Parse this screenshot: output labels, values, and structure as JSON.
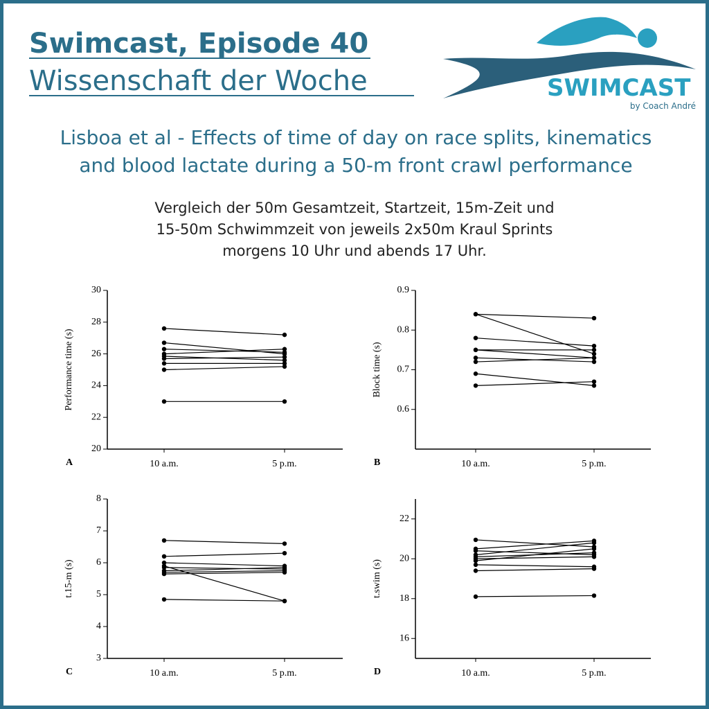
{
  "header": {
    "title": "Swimcast, Episode 40",
    "subtitle": "Wissenschaft der Woche",
    "logo": "SWIMCAST",
    "logo_tagline": "by Coach André",
    "paper": [
      "Lisboa et al - Effects of time of day on race splits, kinematics",
      "and blood lactate during a 50-m front crawl performance"
    ],
    "description": [
      "Vergleich der 50m Gesamtzeit, Startzeit, 15m-Zeit und",
      "15-50m Schwimmzeit von jeweils 2x50m Kraul Sprints",
      "morgens 10 Uhr und abends 17 Uhr."
    ]
  },
  "chart_data": [
    {
      "type": "line",
      "label": "A",
      "y_label": "Performance time (s)",
      "categories": [
        "10 a.m.",
        "5 p.m."
      ],
      "ylim": [
        20,
        30
      ],
      "yticks": [
        20,
        22,
        24,
        26,
        28,
        30
      ],
      "color": "#000000",
      "series": [
        {
          "values": [
            27.6,
            27.2
          ]
        },
        {
          "values": [
            26.7,
            26.0
          ]
        },
        {
          "values": [
            26.3,
            26.1
          ]
        },
        {
          "values": [
            26.0,
            26.3
          ]
        },
        {
          "values": [
            25.85,
            25.6
          ]
        },
        {
          "values": [
            25.7,
            25.8
          ]
        },
        {
          "values": [
            25.4,
            25.4
          ]
        },
        {
          "values": [
            25.0,
            25.2
          ]
        },
        {
          "values": [
            23.0,
            23.0
          ]
        }
      ]
    },
    {
      "type": "line",
      "label": "B",
      "y_label": "Block time (s)",
      "categories": [
        "10 a.m.",
        "5 p.m."
      ],
      "ylim": [
        0.5,
        0.9
      ],
      "yticks": [
        0.6,
        0.7,
        0.8,
        0.9
      ],
      "color": "#000000",
      "series": [
        {
          "values": [
            0.84,
            0.83
          ]
        },
        {
          "values": [
            0.84,
            0.74
          ]
        },
        {
          "values": [
            0.78,
            0.76
          ]
        },
        {
          "values": [
            0.75,
            0.75
          ]
        },
        {
          "values": [
            0.75,
            0.73
          ]
        },
        {
          "values": [
            0.73,
            0.72
          ]
        },
        {
          "values": [
            0.72,
            0.73
          ]
        },
        {
          "values": [
            0.69,
            0.66
          ]
        },
        {
          "values": [
            0.66,
            0.67
          ]
        }
      ]
    },
    {
      "type": "line",
      "label": "C",
      "y_label": "t.15-m (s)",
      "categories": [
        "10 a.m.",
        "5 p.m."
      ],
      "ylim": [
        3,
        8
      ],
      "yticks": [
        3,
        4,
        5,
        6,
        7,
        8
      ],
      "color": "#000000",
      "series": [
        {
          "values": [
            6.7,
            6.6
          ]
        },
        {
          "values": [
            6.2,
            6.3
          ]
        },
        {
          "values": [
            6.0,
            5.9
          ]
        },
        {
          "values": [
            5.9,
            4.8
          ]
        },
        {
          "values": [
            5.85,
            5.8
          ]
        },
        {
          "values": [
            5.75,
            5.85
          ]
        },
        {
          "values": [
            5.7,
            5.75
          ]
        },
        {
          "values": [
            5.65,
            5.7
          ]
        },
        {
          "values": [
            4.85,
            4.8
          ]
        }
      ]
    },
    {
      "type": "line",
      "label": "D",
      "y_label": "t.swim (s)",
      "categories": [
        "10 a.m.",
        "5 p.m."
      ],
      "ylim": [
        15,
        23
      ],
      "yticks": [
        16,
        18,
        20,
        22
      ],
      "color": "#000000",
      "series": [
        {
          "values": [
            20.95,
            20.6
          ]
        },
        {
          "values": [
            20.5,
            20.9
          ]
        },
        {
          "values": [
            20.4,
            20.2
          ]
        },
        {
          "values": [
            20.2,
            20.8
          ]
        },
        {
          "values": [
            20.1,
            20.3
          ]
        },
        {
          "values": [
            20.0,
            20.1
          ]
        },
        {
          "values": [
            19.9,
            20.5
          ]
        },
        {
          "values": [
            19.7,
            19.6
          ]
        },
        {
          "values": [
            19.4,
            19.5
          ]
        },
        {
          "values": [
            18.1,
            18.15
          ]
        }
      ]
    }
  ]
}
